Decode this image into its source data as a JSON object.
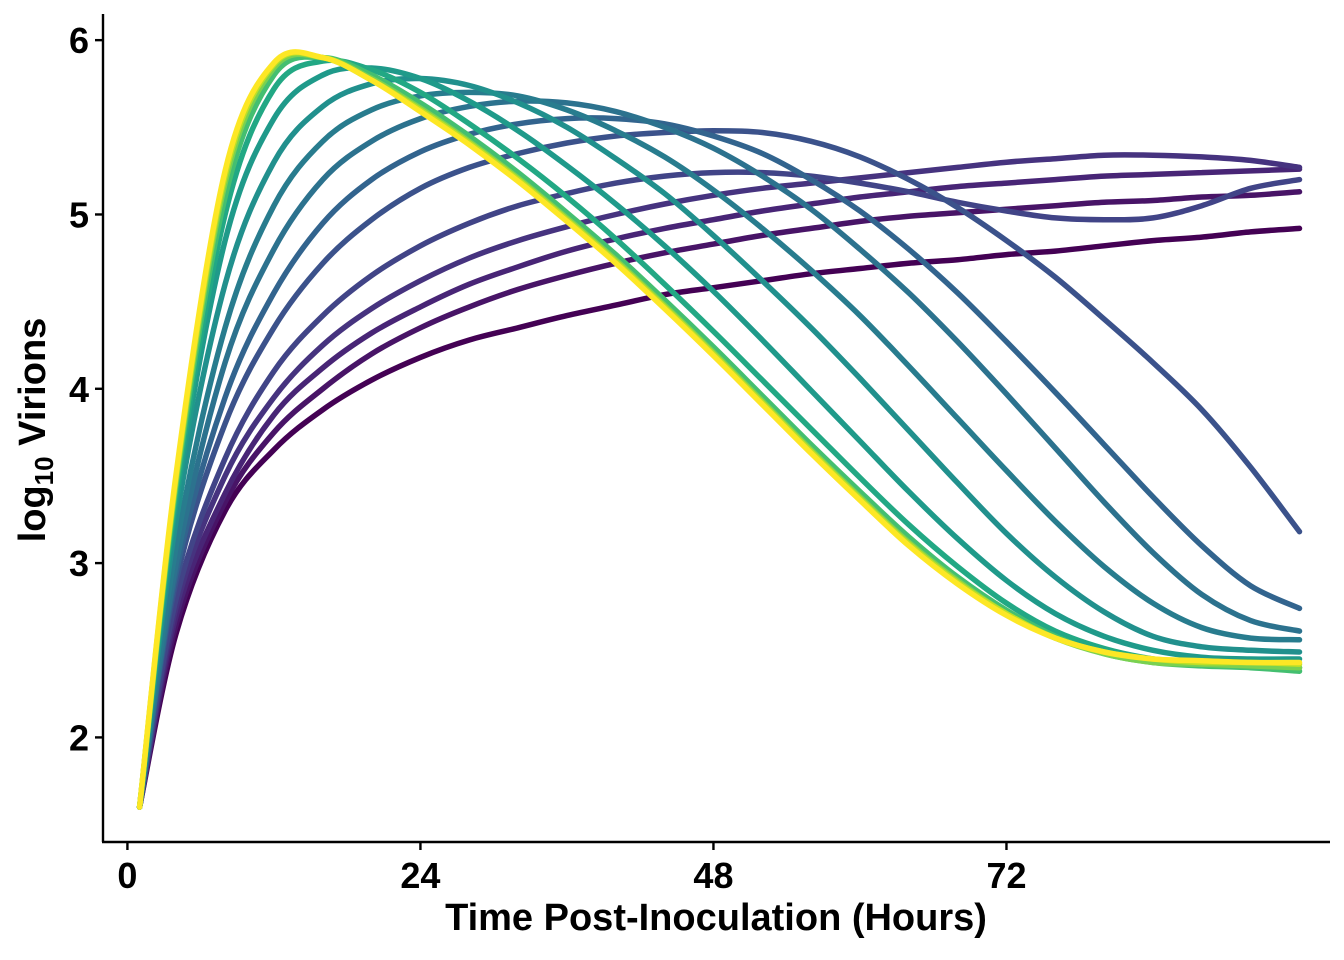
{
  "chart_data": {
    "type": "line",
    "xlabel": "Time Post-Inoculation (Hours)",
    "ylabel_main": "log",
    "ylabel_sub": "10",
    "ylabel_rest": " Virions",
    "xlim": [
      -2,
      98.5
    ],
    "ylim": [
      1.4,
      6.15
    ],
    "xticks": [
      0,
      24,
      48,
      72
    ],
    "xtick_labels": [
      "0",
      "24",
      "48",
      "72"
    ],
    "yticks": [
      2,
      3,
      4,
      5,
      6
    ],
    "ytick_labels": [
      "2",
      "3",
      "4",
      "5",
      "6"
    ],
    "legend": "none",
    "grid": false,
    "series": [
      {
        "color": "#440154",
        "x": [
          1,
          4,
          8,
          12,
          16,
          20,
          24,
          28,
          32,
          36,
          40,
          44,
          48,
          52,
          56,
          60,
          64,
          68,
          72,
          76,
          80,
          84,
          88,
          92,
          96
        ],
        "y": [
          1.6,
          2.6,
          3.3,
          3.65,
          3.88,
          4.05,
          4.18,
          4.28,
          4.35,
          4.42,
          4.48,
          4.54,
          4.58,
          4.62,
          4.66,
          4.69,
          4.72,
          4.74,
          4.77,
          4.79,
          4.82,
          4.85,
          4.87,
          4.9,
          4.92
        ]
      },
      {
        "color": "#481467",
        "x": [
          1,
          4,
          8,
          12,
          16,
          20,
          24,
          28,
          32,
          36,
          40,
          44,
          48,
          52,
          56,
          60,
          64,
          68,
          72,
          76,
          80,
          84,
          88,
          92,
          96
        ],
        "y": [
          1.6,
          2.65,
          3.35,
          3.75,
          4.0,
          4.2,
          4.35,
          4.47,
          4.57,
          4.65,
          4.72,
          4.78,
          4.83,
          4.88,
          4.92,
          4.96,
          4.99,
          5.01,
          5.03,
          5.05,
          5.07,
          5.08,
          5.1,
          5.11,
          5.13
        ]
      },
      {
        "color": "#482576",
        "x": [
          1,
          4,
          8,
          12,
          16,
          20,
          24,
          28,
          32,
          36,
          40,
          44,
          48,
          52,
          56,
          60,
          64,
          68,
          72,
          76,
          80,
          84,
          88,
          92,
          96
        ],
        "y": [
          1.6,
          2.7,
          3.4,
          3.85,
          4.12,
          4.32,
          4.47,
          4.6,
          4.7,
          4.79,
          4.86,
          4.92,
          4.97,
          5.02,
          5.06,
          5.1,
          5.13,
          5.16,
          5.18,
          5.2,
          5.22,
          5.23,
          5.24,
          5.25,
          5.26
        ]
      },
      {
        "color": "#46337f",
        "x": [
          1,
          4,
          8,
          12,
          16,
          20,
          24,
          28,
          32,
          36,
          40,
          44,
          48,
          52,
          56,
          60,
          64,
          68,
          72,
          76,
          80,
          84,
          88,
          92,
          96
        ],
        "y": [
          1.6,
          2.75,
          3.5,
          3.95,
          4.25,
          4.46,
          4.62,
          4.75,
          4.85,
          4.93,
          5.0,
          5.06,
          5.11,
          5.15,
          5.18,
          5.21,
          5.24,
          5.27,
          5.3,
          5.32,
          5.34,
          5.34,
          5.33,
          5.31,
          5.27
        ]
      },
      {
        "color": "#414487",
        "x": [
          1,
          4,
          8,
          12,
          16,
          20,
          24,
          28,
          32,
          36,
          40,
          44,
          48,
          52,
          56,
          60,
          64,
          68,
          72,
          76,
          80,
          84,
          88,
          92,
          96
        ],
        "y": [
          1.6,
          2.8,
          3.6,
          4.1,
          4.42,
          4.65,
          4.82,
          4.95,
          5.05,
          5.12,
          5.18,
          5.22,
          5.24,
          5.24,
          5.22,
          5.18,
          5.13,
          5.07,
          5.02,
          4.98,
          4.97,
          4.98,
          5.05,
          5.15,
          5.2
        ]
      },
      {
        "color": "#3b528b",
        "x": [
          1,
          4,
          8,
          12,
          16,
          20,
          24,
          28,
          32,
          36,
          40,
          44,
          48,
          52,
          56,
          60,
          64,
          68,
          72,
          76,
          80,
          84,
          88,
          92,
          96
        ],
        "y": [
          1.6,
          2.9,
          3.8,
          4.35,
          4.72,
          4.97,
          5.15,
          5.27,
          5.35,
          5.41,
          5.45,
          5.47,
          5.48,
          5.47,
          5.42,
          5.33,
          5.2,
          5.04,
          4.85,
          4.64,
          4.4,
          4.15,
          3.88,
          3.55,
          3.18
        ]
      },
      {
        "color": "#32648e",
        "x": [
          1,
          4,
          8,
          12,
          16,
          20,
          24,
          28,
          32,
          36,
          40,
          44,
          48,
          52,
          56,
          60,
          64,
          68,
          72,
          76,
          80,
          84,
          88,
          92,
          96
        ],
        "y": [
          1.6,
          2.95,
          3.95,
          4.55,
          4.95,
          5.2,
          5.36,
          5.46,
          5.52,
          5.55,
          5.55,
          5.52,
          5.45,
          5.35,
          5.2,
          5.02,
          4.8,
          4.55,
          4.27,
          3.98,
          3.68,
          3.38,
          3.1,
          2.87,
          2.74
        ]
      },
      {
        "color": "#2c728e",
        "x": [
          1,
          4,
          8,
          12,
          16,
          20,
          24,
          28,
          32,
          36,
          40,
          44,
          48,
          52,
          56,
          60,
          64,
          68,
          72,
          76,
          80,
          84,
          88,
          92,
          96
        ],
        "y": [
          1.6,
          3.0,
          4.15,
          4.8,
          5.2,
          5.42,
          5.55,
          5.62,
          5.65,
          5.64,
          5.59,
          5.5,
          5.38,
          5.22,
          5.03,
          4.8,
          4.55,
          4.27,
          3.97,
          3.66,
          3.35,
          3.06,
          2.82,
          2.67,
          2.61
        ]
      },
      {
        "color": "#287c8e",
        "x": [
          1,
          4,
          8,
          12,
          16,
          20,
          24,
          28,
          32,
          36,
          40,
          44,
          48,
          52,
          56,
          60,
          64,
          68,
          72,
          76,
          80,
          84,
          88,
          92,
          96
        ],
        "y": [
          1.6,
          3.1,
          4.35,
          5.05,
          5.42,
          5.6,
          5.68,
          5.7,
          5.68,
          5.6,
          5.48,
          5.33,
          5.14,
          4.92,
          4.68,
          4.42,
          4.13,
          3.83,
          3.53,
          3.24,
          2.98,
          2.77,
          2.63,
          2.57,
          2.56
        ]
      },
      {
        "color": "#21908d",
        "x": [
          1,
          4,
          8,
          12,
          16,
          20,
          24,
          28,
          32,
          36,
          40,
          44,
          48,
          52,
          56,
          60,
          64,
          68,
          72,
          76,
          80,
          84,
          88,
          92,
          96
        ],
        "y": [
          1.6,
          3.25,
          4.6,
          5.3,
          5.62,
          5.75,
          5.78,
          5.74,
          5.64,
          5.5,
          5.32,
          5.12,
          4.88,
          4.62,
          4.35,
          4.06,
          3.76,
          3.46,
          3.17,
          2.92,
          2.72,
          2.58,
          2.52,
          2.5,
          2.49
        ]
      },
      {
        "color": "#1f9a8a",
        "x": [
          1,
          4,
          8,
          12,
          16,
          20,
          24,
          28,
          32,
          36,
          40,
          44,
          48,
          52,
          56,
          60,
          64,
          68,
          72,
          76,
          80,
          84,
          88,
          92,
          96
        ],
        "y": [
          1.6,
          3.35,
          4.85,
          5.55,
          5.8,
          5.84,
          5.78,
          5.65,
          5.48,
          5.28,
          5.06,
          4.82,
          4.56,
          4.28,
          3.99,
          3.7,
          3.41,
          3.14,
          2.9,
          2.71,
          2.58,
          2.5,
          2.46,
          2.45,
          2.45
        ]
      },
      {
        "color": "#22a884",
        "x": [
          1,
          4,
          8,
          12,
          16,
          20,
          24,
          28,
          32,
          36,
          40,
          44,
          48,
          52,
          56,
          60,
          64,
          68,
          72,
          76,
          80,
          84,
          88,
          92,
          96
        ],
        "y": [
          1.6,
          3.4,
          5.0,
          5.72,
          5.88,
          5.83,
          5.7,
          5.52,
          5.32,
          5.1,
          4.86,
          4.6,
          4.33,
          4.05,
          3.77,
          3.49,
          3.22,
          2.98,
          2.77,
          2.61,
          2.51,
          2.45,
          2.42,
          2.41,
          2.4
        ]
      },
      {
        "color": "#44bf70",
        "x": [
          1,
          4,
          8,
          12,
          16,
          20,
          24,
          28,
          32,
          36,
          40,
          44,
          48,
          52,
          56,
          60,
          64,
          68,
          72,
          76,
          80,
          84,
          88,
          92,
          96
        ],
        "y": [
          1.6,
          3.45,
          5.1,
          5.8,
          5.9,
          5.8,
          5.64,
          5.45,
          5.24,
          5.01,
          4.77,
          4.51,
          4.24,
          3.96,
          3.68,
          3.41,
          3.15,
          2.92,
          2.73,
          2.58,
          2.48,
          2.43,
          2.41,
          2.4,
          2.38
        ]
      },
      {
        "color": "#7ad151",
        "x": [
          1,
          4,
          8,
          12,
          16,
          20,
          24,
          28,
          32,
          36,
          40,
          44,
          48,
          52,
          56,
          60,
          64,
          68,
          72,
          76,
          80,
          84,
          88,
          92,
          96
        ],
        "y": [
          1.6,
          3.48,
          5.18,
          5.84,
          5.9,
          5.78,
          5.61,
          5.42,
          5.21,
          4.98,
          4.74,
          4.48,
          4.21,
          3.93,
          3.65,
          3.38,
          3.12,
          2.9,
          2.71,
          2.57,
          2.48,
          2.43,
          2.42,
          2.41,
          2.4
        ]
      },
      {
        "color": "#bddf26",
        "x": [
          1,
          4,
          8,
          12,
          16,
          20,
          24,
          28,
          32,
          36,
          40,
          44,
          48,
          52,
          56,
          60,
          64,
          68,
          72,
          76,
          80,
          84,
          88,
          92,
          96
        ],
        "y": [
          1.6,
          3.5,
          5.22,
          5.86,
          5.9,
          5.77,
          5.6,
          5.41,
          5.2,
          4.97,
          4.73,
          4.47,
          4.2,
          3.92,
          3.64,
          3.37,
          3.11,
          2.89,
          2.71,
          2.57,
          2.49,
          2.45,
          2.43,
          2.43,
          2.42
        ]
      },
      {
        "color": "#fde725",
        "x": [
          1,
          4,
          8,
          12,
          16,
          20,
          24,
          28,
          32,
          36,
          40,
          44,
          48,
          52,
          56,
          60,
          64,
          68,
          72,
          76,
          80,
          84,
          88,
          92,
          96
        ],
        "y": [
          1.6,
          3.52,
          5.25,
          5.87,
          5.9,
          5.77,
          5.59,
          5.4,
          5.19,
          4.96,
          4.72,
          4.46,
          4.19,
          3.91,
          3.63,
          3.36,
          3.1,
          2.88,
          2.7,
          2.57,
          2.49,
          2.45,
          2.44,
          2.43,
          2.43
        ]
      }
    ]
  }
}
